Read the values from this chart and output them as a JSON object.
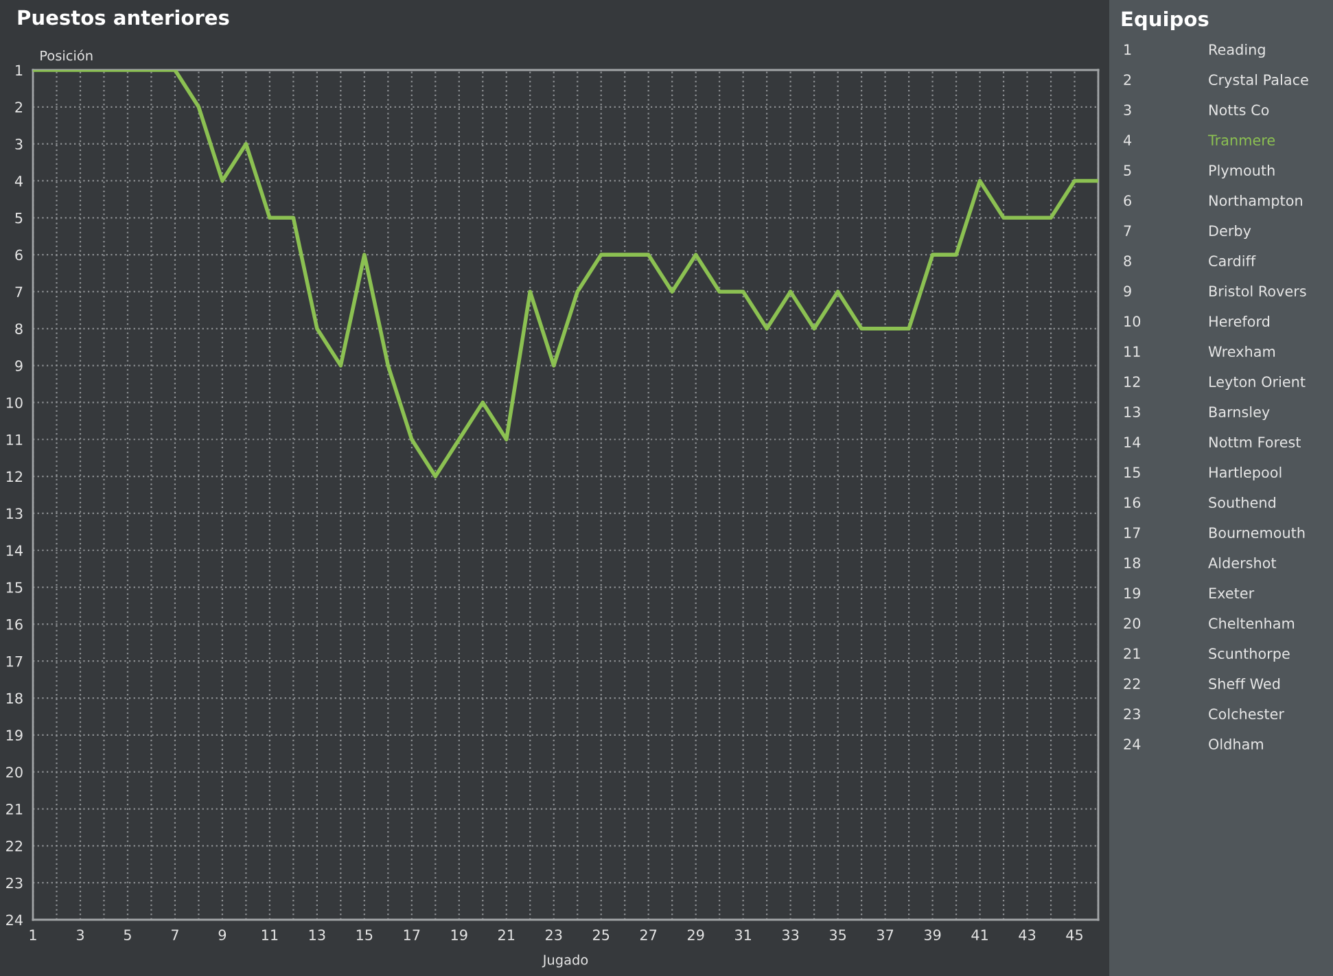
{
  "chart_data": [
    {
      "type": "line",
      "title": "Puestos anteriores",
      "ylabel": "Posición",
      "xlabel": "Jugado",
      "x": [
        1,
        2,
        3,
        4,
        5,
        6,
        7,
        8,
        9,
        10,
        11,
        12,
        13,
        14,
        15,
        16,
        17,
        18,
        19,
        20,
        21,
        22,
        23,
        24,
        25,
        26,
        27,
        28,
        29,
        30,
        31,
        32,
        33,
        34,
        35,
        36,
        37,
        38,
        39,
        40,
        41,
        42,
        43,
        44,
        45,
        46
      ],
      "series": [
        {
          "color": "#8cc152",
          "values": [
            1,
            1,
            1,
            1,
            1,
            1,
            1,
            2,
            4,
            3,
            5,
            5,
            8,
            9,
            6,
            9,
            11,
            12,
            11,
            10,
            11,
            7,
            9,
            7,
            6,
            6,
            6,
            7,
            6,
            7,
            7,
            8,
            7,
            8,
            7,
            8,
            8,
            8,
            6,
            6,
            4,
            5,
            5,
            5,
            4,
            4
          ]
        }
      ],
      "xlim": [
        1,
        46
      ],
      "ylim": [
        24,
        1
      ],
      "xticks": [
        1,
        {
          "value": 2,
          "label": null
        },
        3,
        {
          "value": 4,
          "label": null
        },
        5,
        {
          "value": 6,
          "label": null
        },
        7,
        {
          "value": 8,
          "label": null
        },
        9,
        {
          "value": 10,
          "label": null
        },
        11,
        {
          "value": 12,
          "label": null
        },
        13,
        {
          "value": 14,
          "label": null
        },
        15,
        {
          "value": 16,
          "label": null
        },
        17,
        {
          "value": 18,
          "label": null
        },
        19,
        {
          "value": 20,
          "label": null
        },
        21,
        {
          "value": 22,
          "label": null
        },
        23,
        {
          "value": 24,
          "label": null
        },
        25,
        {
          "value": 26,
          "label": null
        },
        27,
        {
          "value": 28,
          "label": null
        },
        29,
        {
          "value": 30,
          "label": null
        },
        31,
        {
          "value": 32,
          "label": null
        },
        33,
        {
          "value": 34,
          "label": null
        },
        35,
        {
          "value": 36,
          "label": null
        },
        37,
        {
          "value": 38,
          "label": null
        },
        39,
        {
          "value": 40,
          "label": null
        },
        41,
        {
          "value": 42,
          "label": null
        },
        43,
        {
          "value": 44,
          "label": null
        },
        45,
        {
          "value": 46,
          "label": null
        }
      ],
      "yticks": [
        1,
        2,
        3,
        4,
        5,
        6,
        7,
        8,
        9,
        10,
        11,
        12,
        13,
        14,
        15,
        16,
        17,
        18,
        19,
        20,
        21,
        22,
        23,
        24
      ],
      "grid": true
    },
    {
      "type": "other",
      "title": "Equipos",
      "categories": [
        "Reading",
        "Crystal Palace",
        "Notts Co",
        "Tranmere",
        "Plymouth",
        "Northampton",
        "Derby",
        "Cardiff",
        "Bristol Rovers",
        "Hereford",
        "Wrexham",
        "Leyton Orient",
        "Barnsley",
        "Nottm Forest",
        "Hartlepool",
        "Southend",
        "Bournemouth",
        "Aldershot",
        "Exeter",
        "Cheltenham",
        "Scunthorpe",
        "Sheff Wed",
        "Colchester",
        "Oldham"
      ],
      "values": [
        1,
        2,
        3,
        4,
        5,
        6,
        7,
        8,
        9,
        10,
        11,
        12,
        13,
        14,
        15,
        16,
        17,
        18,
        19,
        20,
        21,
        22,
        23,
        24
      ],
      "colors": [
        "#e8e8e8",
        "#e8e8e8",
        "#e8e8e8",
        "#8cc152",
        "#e8e8e8",
        "#e8e8e8",
        "#e8e8e8",
        "#e8e8e8",
        "#e8e8e8",
        "#e8e8e8",
        "#e8e8e8",
        "#e8e8e8",
        "#e8e8e8",
        "#e8e8e8",
        "#e8e8e8",
        "#e8e8e8",
        "#e8e8e8",
        "#e8e8e8",
        "#e8e8e8",
        "#e8e8e8",
        "#e8e8e8",
        "#e8e8e8",
        "#e8e8e8",
        "#e8e8e8"
      ],
      "data_labels": true
    }
  ]
}
